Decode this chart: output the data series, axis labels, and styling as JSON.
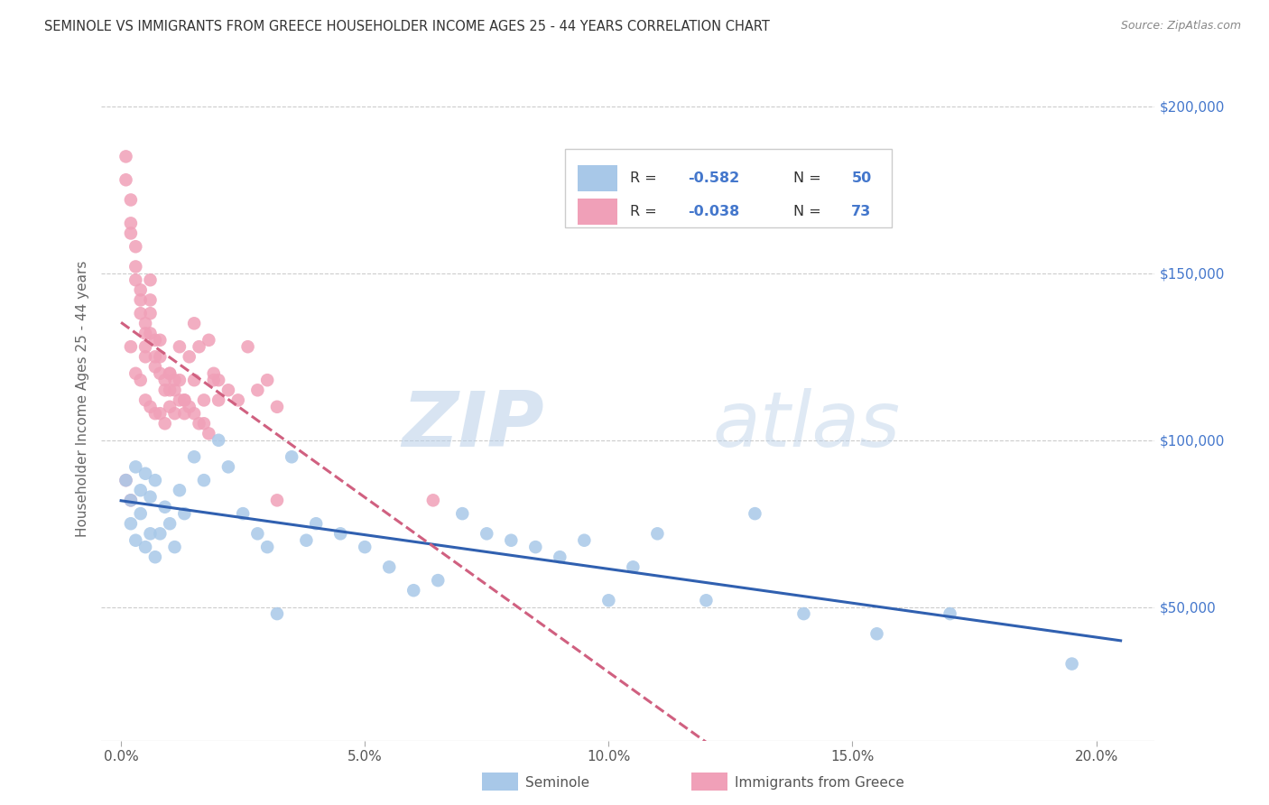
{
  "title": "SEMINOLE VS IMMIGRANTS FROM GREECE HOUSEHOLDER INCOME AGES 25 - 44 YEARS CORRELATION CHART",
  "source": "Source: ZipAtlas.com",
  "ylabel": "Householder Income Ages 25 - 44 years",
  "ytick_labels": [
    "$50,000",
    "$100,000",
    "$150,000",
    "$200,000"
  ],
  "ytick_vals": [
    50000,
    100000,
    150000,
    200000
  ],
  "xtick_labels": [
    "0.0%",
    "5.0%",
    "10.0%",
    "15.0%",
    "20.0%"
  ],
  "xtick_vals": [
    0.0,
    0.05,
    0.1,
    0.15,
    0.2
  ],
  "xlim": [
    -0.004,
    0.212
  ],
  "ylim": [
    10000,
    215000
  ],
  "legend_labels": [
    "Seminole",
    "Immigrants from Greece"
  ],
  "seminole_color": "#a8c8e8",
  "greece_color": "#f0a0b8",
  "seminole_line_color": "#3060b0",
  "greece_line_color": "#d06080",
  "watermark_zip": "ZIP",
  "watermark_atlas": "atlas",
  "seminole_scatter_x": [
    0.001,
    0.002,
    0.002,
    0.003,
    0.003,
    0.004,
    0.004,
    0.005,
    0.005,
    0.006,
    0.006,
    0.007,
    0.007,
    0.008,
    0.009,
    0.01,
    0.011,
    0.012,
    0.013,
    0.015,
    0.017,
    0.02,
    0.022,
    0.025,
    0.028,
    0.03,
    0.032,
    0.035,
    0.038,
    0.04,
    0.045,
    0.05,
    0.055,
    0.06,
    0.065,
    0.07,
    0.075,
    0.08,
    0.085,
    0.09,
    0.095,
    0.1,
    0.105,
    0.11,
    0.12,
    0.13,
    0.14,
    0.155,
    0.17,
    0.195
  ],
  "seminole_scatter_y": [
    88000,
    82000,
    75000,
    92000,
    70000,
    85000,
    78000,
    90000,
    68000,
    83000,
    72000,
    88000,
    65000,
    72000,
    80000,
    75000,
    68000,
    85000,
    78000,
    95000,
    88000,
    100000,
    92000,
    78000,
    72000,
    68000,
    48000,
    95000,
    70000,
    75000,
    72000,
    68000,
    62000,
    55000,
    58000,
    78000,
    72000,
    70000,
    68000,
    65000,
    70000,
    52000,
    62000,
    72000,
    52000,
    78000,
    48000,
    42000,
    48000,
    33000
  ],
  "greece_scatter_x": [
    0.001,
    0.001,
    0.002,
    0.002,
    0.002,
    0.003,
    0.003,
    0.003,
    0.004,
    0.004,
    0.004,
    0.005,
    0.005,
    0.005,
    0.005,
    0.006,
    0.006,
    0.006,
    0.006,
    0.007,
    0.007,
    0.007,
    0.008,
    0.008,
    0.008,
    0.009,
    0.009,
    0.01,
    0.01,
    0.01,
    0.011,
    0.011,
    0.012,
    0.012,
    0.013,
    0.013,
    0.014,
    0.015,
    0.015,
    0.016,
    0.017,
    0.018,
    0.019,
    0.02,
    0.022,
    0.024,
    0.026,
    0.028,
    0.03,
    0.032,
    0.002,
    0.003,
    0.004,
    0.005,
    0.006,
    0.007,
    0.008,
    0.009,
    0.01,
    0.011,
    0.012,
    0.013,
    0.014,
    0.015,
    0.016,
    0.017,
    0.018,
    0.019,
    0.02,
    0.032,
    0.064,
    0.001,
    0.002
  ],
  "greece_scatter_y": [
    185000,
    178000,
    172000,
    165000,
    162000,
    158000,
    152000,
    148000,
    145000,
    142000,
    138000,
    135000,
    132000,
    128000,
    125000,
    148000,
    142000,
    138000,
    132000,
    130000,
    125000,
    122000,
    130000,
    125000,
    120000,
    118000,
    115000,
    120000,
    115000,
    110000,
    115000,
    108000,
    128000,
    118000,
    112000,
    108000,
    125000,
    135000,
    118000,
    128000,
    112000,
    130000,
    120000,
    118000,
    115000,
    112000,
    128000,
    115000,
    118000,
    110000,
    128000,
    120000,
    118000,
    112000,
    110000,
    108000,
    108000,
    105000,
    120000,
    118000,
    112000,
    112000,
    110000,
    108000,
    105000,
    105000,
    102000,
    118000,
    112000,
    82000,
    82000,
    88000,
    82000
  ]
}
